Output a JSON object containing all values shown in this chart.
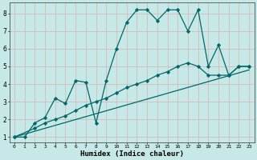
{
  "title": "",
  "xlabel": "Humidex (Indice chaleur)",
  "ylabel": "",
  "bg_color": "#c6e8e6",
  "grid_color": "#d8b0b0",
  "line_color": "#006868",
  "xlim": [
    -0.5,
    23.5
  ],
  "ylim": [
    0.7,
    8.6
  ],
  "xticks": [
    0,
    1,
    2,
    3,
    4,
    5,
    6,
    7,
    8,
    9,
    10,
    11,
    12,
    13,
    14,
    15,
    16,
    17,
    18,
    19,
    20,
    21,
    22,
    23
  ],
  "yticks": [
    1,
    2,
    3,
    4,
    5,
    6,
    7,
    8
  ],
  "series1_x": [
    0,
    1,
    2,
    3,
    4,
    5,
    6,
    7,
    8,
    9,
    10,
    11,
    12,
    13,
    14,
    15,
    16,
    17,
    18,
    19,
    20,
    21,
    22,
    23
  ],
  "series1_y": [
    1.0,
    1.0,
    1.8,
    2.1,
    3.2,
    2.9,
    4.2,
    4.1,
    1.8,
    4.2,
    6.0,
    7.5,
    8.2,
    8.2,
    7.6,
    8.2,
    8.2,
    7.0,
    8.2,
    5.0,
    6.2,
    4.5,
    5.0,
    5.0
  ],
  "series2_x": [
    0,
    2,
    3,
    4,
    5,
    6,
    7,
    8,
    9,
    10,
    11,
    12,
    13,
    14,
    15,
    16,
    17,
    18,
    19,
    20,
    21,
    22,
    23
  ],
  "series2_y": [
    1.0,
    1.5,
    1.8,
    2.0,
    2.2,
    2.5,
    2.8,
    3.0,
    3.2,
    3.5,
    3.8,
    4.0,
    4.2,
    4.5,
    4.7,
    5.0,
    5.2,
    5.0,
    4.5,
    4.5,
    4.5,
    5.0,
    5.0
  ],
  "series3_x": [
    0,
    23
  ],
  "series3_y": [
    1.0,
    4.8
  ],
  "marker": "D",
  "markersize": 2.2,
  "linewidth": 0.9
}
